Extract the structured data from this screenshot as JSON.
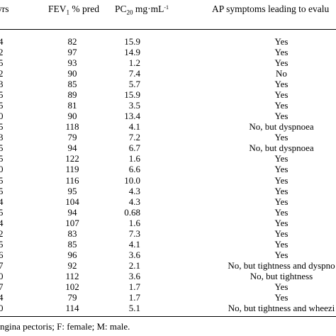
{
  "headers": {
    "age": "yrs",
    "fev_main": "FEV",
    "fev_sub": "1",
    "fev_rest": " % pred",
    "pc_main": "PC",
    "pc_sub": "20",
    "pc_rest": " mg·mL",
    "pc_sup": "-1",
    "ap": "AP symptoms leading to evalu"
  },
  "rows": [
    {
      "id": "4",
      "fev": "82",
      "pc": "15.9",
      "ap": "Yes"
    },
    {
      "id": "2",
      "fev": "97",
      "pc": "14.9",
      "ap": "Yes"
    },
    {
      "id": "5",
      "fev": "93",
      "pc": "1.2",
      "ap": "Yes"
    },
    {
      "id": "2",
      "fev": "90",
      "pc": "7.4",
      "ap": "No"
    },
    {
      "id": "3",
      "fev": "85",
      "pc": "5.7",
      "ap": "Yes"
    },
    {
      "id": "5",
      "fev": "89",
      "pc": "15.9",
      "ap": "Yes"
    },
    {
      "id": "5",
      "fev": "81",
      "pc": "3.5",
      "ap": "Yes"
    },
    {
      "id": "0",
      "fev": "90",
      "pc": "13.4",
      "ap": "Yes"
    },
    {
      "id": "5",
      "fev": "118",
      "pc": "4.1",
      "ap": "No, but dyspnoea"
    },
    {
      "id": "3",
      "fev": "79",
      "pc": "7.2",
      "ap": "Yes"
    },
    {
      "id": "5",
      "fev": "94",
      "pc": "6.7",
      "ap": "No, but dyspnoea"
    },
    {
      "id": "5",
      "fev": "122",
      "pc": "1.6",
      "ap": "Yes"
    },
    {
      "id": "0",
      "fev": "119",
      "pc": "6.6",
      "ap": "Yes"
    },
    {
      "id": "5",
      "fev": "116",
      "pc": "10.0",
      "ap": "Yes"
    },
    {
      "id": "5",
      "fev": "95",
      "pc": "4.3",
      "ap": "Yes"
    },
    {
      "id": "4",
      "fev": "104",
      "pc": "4.3",
      "ap": "Yes"
    },
    {
      "id": "5",
      "fev": "94",
      "pc": "0.68",
      "ap": "Yes"
    },
    {
      "id": "4",
      "fev": "107",
      "pc": "1.6",
      "ap": "Yes"
    },
    {
      "id": "2",
      "fev": "83",
      "pc": "7.3",
      "ap": "Yes"
    },
    {
      "id": "5",
      "fev": "85",
      "pc": "4.1",
      "ap": "Yes"
    },
    {
      "id": "6",
      "fev": "96",
      "pc": "3.6",
      "ap": "Yes"
    },
    {
      "id": "7",
      "fev": "92",
      "pc": "2.1",
      "ap": "No, but tightness and dyspno"
    },
    {
      "id": "0",
      "fev": "112",
      "pc": "3.6",
      "ap": "No, but tightness"
    },
    {
      "id": "7",
      "fev": "102",
      "pc": "1.7",
      "ap": "Yes"
    },
    {
      "id": "4",
      "fev": "79",
      "pc": "1.7",
      "ap": "Yes"
    },
    {
      "id": "0",
      "fev": "114",
      "pc": "5.1",
      "ap": "No, but tightness and wheezi"
    }
  ],
  "footnote": "ngina pectoris; F: female; M: male."
}
